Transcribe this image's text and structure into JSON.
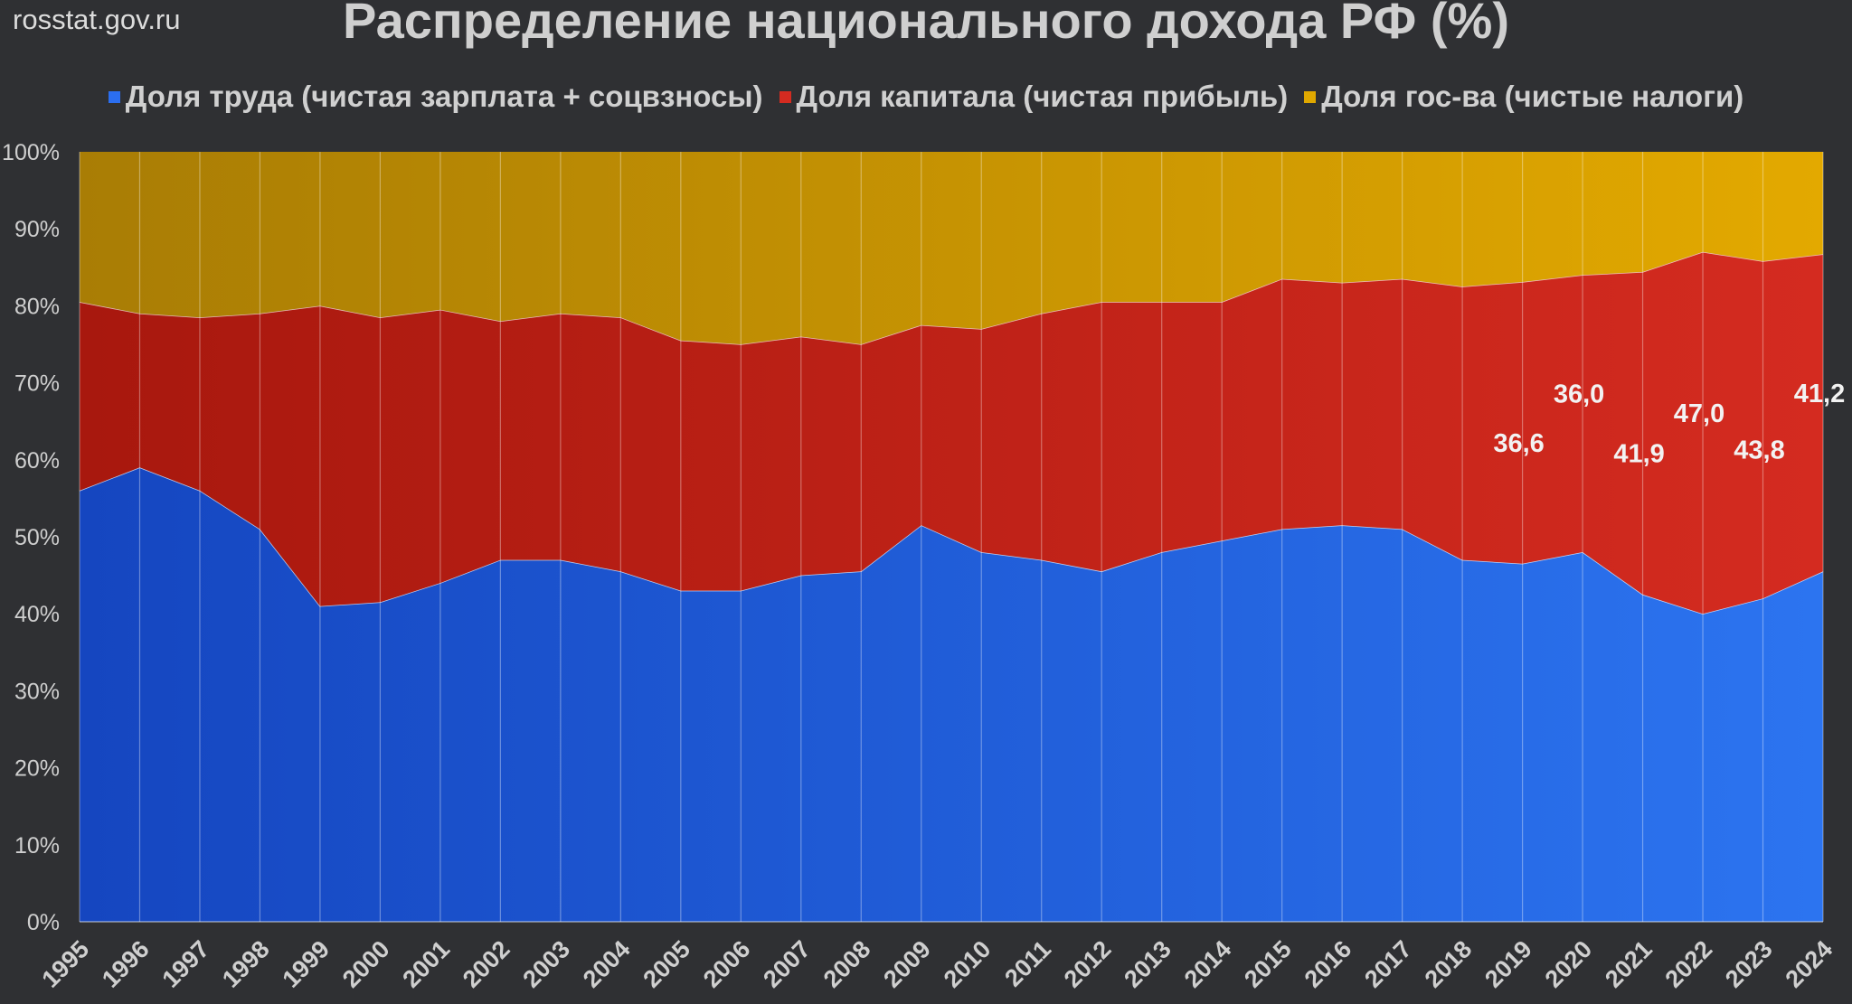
{
  "header": {
    "source": "rosstat.gov.ru",
    "title": "Распределение национального дохода РФ (%)"
  },
  "colors": {
    "background": "#2f3033",
    "labor": "#1f5fe0",
    "capital": "#d42b20",
    "government": "#d9a300",
    "text": "#cfcfcf"
  },
  "chart_data": {
    "type": "area",
    "stacked": true,
    "title": "Распределение национального дохода РФ (%)",
    "xlabel": "",
    "ylabel": "",
    "ylim": [
      0,
      100
    ],
    "yticks": [
      "0%",
      "10%",
      "20%",
      "30%",
      "40%",
      "50%",
      "60%",
      "70%",
      "80%",
      "90%",
      "100%"
    ],
    "legend_position": "top",
    "grid": "vertical",
    "x": [
      "1995",
      "1996",
      "1997",
      "1998",
      "1999",
      "2000",
      "2001",
      "2002",
      "2003",
      "2004",
      "2005",
      "2006",
      "2007",
      "2008",
      "2009",
      "2010",
      "2011",
      "2012",
      "2013",
      "2014",
      "2015",
      "2016",
      "2017",
      "2018",
      "2019",
      "2020",
      "2021",
      "2022",
      "2023",
      "2024"
    ],
    "series": [
      {
        "name": "Доля труда (чистая зарплата + соцвзносы)",
        "color": "#1f5fe0",
        "values": [
          56.0,
          59.0,
          56.0,
          51.0,
          41.0,
          41.5,
          44.0,
          47.0,
          47.0,
          45.5,
          43.0,
          43.0,
          45.0,
          45.5,
          51.5,
          48.0,
          47.0,
          45.5,
          48.0,
          49.5,
          51.0,
          51.5,
          51.0,
          47.0,
          46.5,
          48.0,
          42.5,
          40.0,
          42.0,
          45.5
        ]
      },
      {
        "name": "Доля капитала (чистая прибыль)",
        "color": "#d42b20",
        "values": [
          24.5,
          20.0,
          22.5,
          28.0,
          39.0,
          37.0,
          35.5,
          31.0,
          32.0,
          33.0,
          32.5,
          32.0,
          31.0,
          29.5,
          26.0,
          29.0,
          32.0,
          35.0,
          32.5,
          31.0,
          32.5,
          31.5,
          32.5,
          35.5,
          36.6,
          36.0,
          41.9,
          47.0,
          43.8,
          41.2
        ]
      },
      {
        "name": "Доля гос-ва (чистые налоги)",
        "color": "#d9a300",
        "values": [
          19.5,
          21.0,
          21.5,
          21.0,
          20.0,
          21.5,
          20.5,
          22.0,
          21.0,
          21.5,
          24.5,
          25.0,
          24.0,
          25.0,
          22.5,
          23.0,
          21.0,
          19.5,
          19.5,
          19.5,
          16.5,
          17.0,
          16.5,
          17.5,
          16.9,
          16.0,
          15.6,
          13.0,
          14.2,
          13.3
        ]
      }
    ],
    "data_labels": [
      {
        "x": "2019",
        "text": "36,6"
      },
      {
        "x": "2020",
        "text": "36,0"
      },
      {
        "x": "2021",
        "text": "41,9"
      },
      {
        "x": "2022",
        "text": "47,0"
      },
      {
        "x": "2023",
        "text": "43,8"
      },
      {
        "x": "2024",
        "text": "41,2"
      }
    ]
  }
}
